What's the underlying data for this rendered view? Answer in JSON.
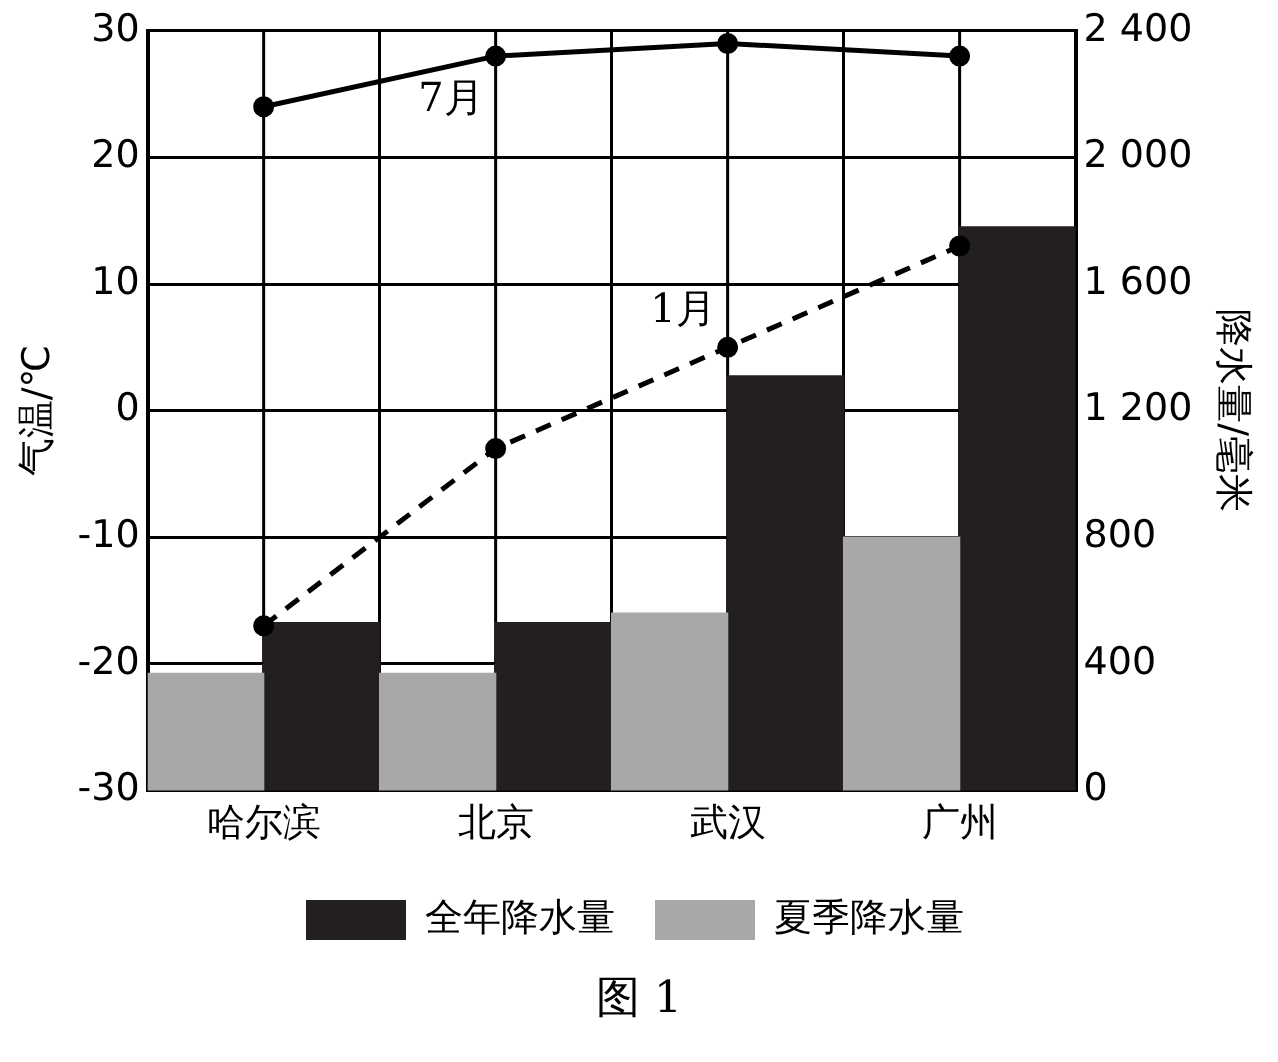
{
  "chart_data": {
    "type": "bar",
    "categories": [
      "哈尔滨",
      "北京",
      "武汉",
      "广州"
    ],
    "ylabel": "气温/℃",
    "y2label": "降水量/毫米",
    "series": [
      {
        "name": "夏季降水量",
        "axis": "y2",
        "color": "#a8a8a8",
        "values": [
          370,
          370,
          560,
          800
        ]
      },
      {
        "name": "全年降水量",
        "axis": "y2",
        "color": "#231f20",
        "values": [
          530,
          530,
          1310,
          1780
        ]
      },
      {
        "type": "line",
        "axis": "y",
        "color": "#000000",
        "line_style": "solid",
        "values": [
          24,
          28,
          29,
          28
        ]
      },
      {
        "type": "line",
        "axis": "y",
        "color": "#000000",
        "line_style": "dashed",
        "values": [
          -17,
          -3,
          5,
          13
        ]
      }
    ],
    "ylim": [
      -30,
      30
    ],
    "yticks": [
      -30,
      -20,
      -10,
      0,
      10,
      20,
      30
    ],
    "y2lim": [
      0,
      2400
    ],
    "y2ticks": [
      0,
      {
        "value": 400,
        "label": "400"
      },
      {
        "value": 800,
        "label": "800"
      },
      {
        "value": 1200,
        "label": "1 200"
      },
      {
        "value": 1600,
        "label": "1 600"
      },
      {
        "value": 2000,
        "label": "2 000"
      },
      {
        "value": 2400,
        "label": "2 400"
      }
    ],
    "grid": true,
    "legend": "bottom",
    "marker": "circle",
    "annotations": [
      {
        "text": "7月",
        "x": "北京",
        "y": 28
      },
      {
        "text": "1月",
        "x": "武汉",
        "y": 5
      },
      "图 1"
    ]
  }
}
